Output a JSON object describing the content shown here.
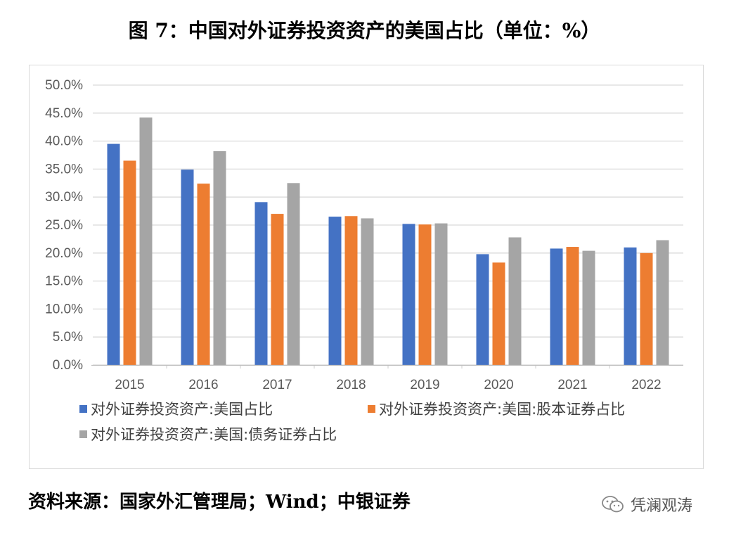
{
  "title": "图 7：中国对外证券投资资产的美国占比（单位：%）",
  "source": "资料来源：国家外汇管理局；Wind；中银证券",
  "watermark": "凭澜观涛",
  "colors": {
    "series1": "#4472c4",
    "series2": "#ed7d31",
    "series3": "#a5a5a5",
    "grid": "#d9d9d9",
    "axis_text": "#595959"
  },
  "chart_data": {
    "type": "bar",
    "categories": [
      "2015",
      "2016",
      "2017",
      "2018",
      "2019",
      "2020",
      "2021",
      "2022"
    ],
    "series": [
      {
        "name": "对外证券投资资产:美国占比",
        "values": [
          39.5,
          34.9,
          29.1,
          26.5,
          25.2,
          19.8,
          20.8,
          21.0
        ]
      },
      {
        "name": "对外证券投资资产:美国:股本证券占比",
        "values": [
          36.5,
          32.4,
          27.0,
          26.6,
          25.1,
          18.3,
          21.1,
          20.0
        ]
      },
      {
        "name": "对外证券投资资产:美国:债务证券占比",
        "values": [
          44.2,
          38.2,
          32.5,
          26.2,
          25.3,
          22.8,
          20.4,
          22.3
        ]
      }
    ],
    "yticks": [
      "0.0%",
      "5.0%",
      "10.0%",
      "15.0%",
      "20.0%",
      "25.0%",
      "30.0%",
      "35.0%",
      "40.0%",
      "45.0%",
      "50.0%"
    ],
    "ylim": [
      0,
      50
    ],
    "grid": true,
    "legend_position": "bottom"
  }
}
